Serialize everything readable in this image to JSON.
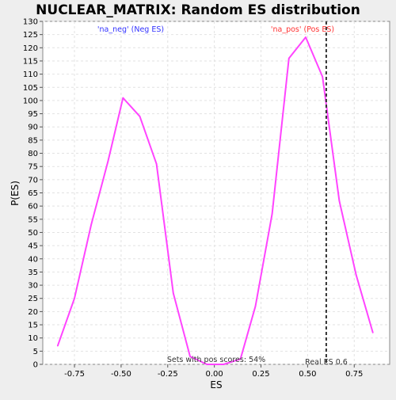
{
  "chart_data": {
    "type": "line",
    "title": "NUCLEAR_MATRIX: Random ES distribution",
    "xlabel": "ES",
    "ylabel": "P(ES)",
    "xlim": [
      -0.92,
      0.94
    ],
    "ylim": [
      0,
      130
    ],
    "x_ticks": [
      -0.75,
      -0.5,
      -0.25,
      0.0,
      0.25,
      0.5,
      0.75
    ],
    "x_tick_labels": [
      "-0.75",
      "-0.50",
      "-0.25",
      "0.00",
      "0.25",
      "0.50",
      "0.75"
    ],
    "y_ticks": [
      0,
      5,
      10,
      15,
      20,
      25,
      30,
      35,
      40,
      45,
      50,
      55,
      60,
      65,
      70,
      75,
      80,
      85,
      90,
      95,
      100,
      105,
      110,
      115,
      120,
      125,
      130
    ],
    "grid": true,
    "series": [
      {
        "color": "#ff44ff",
        "x": [
          -0.84,
          -0.75,
          -0.66,
          -0.57,
          -0.49,
          -0.4,
          -0.31,
          -0.22,
          -0.13,
          -0.04,
          0.05,
          0.14,
          0.22,
          0.31,
          0.4,
          0.49,
          0.58,
          0.67,
          0.76,
          0.85
        ],
        "y": [
          7,
          25,
          53,
          77,
          101,
          94,
          76,
          27,
          3,
          0,
          0,
          2,
          22,
          57,
          116,
          124,
          109,
          62,
          34,
          12
        ]
      }
    ],
    "vline": {
      "x": 0.6,
      "color": "#333333",
      "style": "dashed"
    },
    "annotations": {
      "neg_label": "'na_neg' (Neg ES)",
      "pos_label": "'na_pos' (Pos ES)",
      "pos_scores": "Sets with pos scores: 54%",
      "real_es": "Real ES 0.6"
    },
    "colors": {
      "neg_label": "#3333ff",
      "pos_label": "#ff3333",
      "line": "#ff44ff",
      "background": "#ffffff",
      "grid": "#e2e2e2"
    }
  }
}
